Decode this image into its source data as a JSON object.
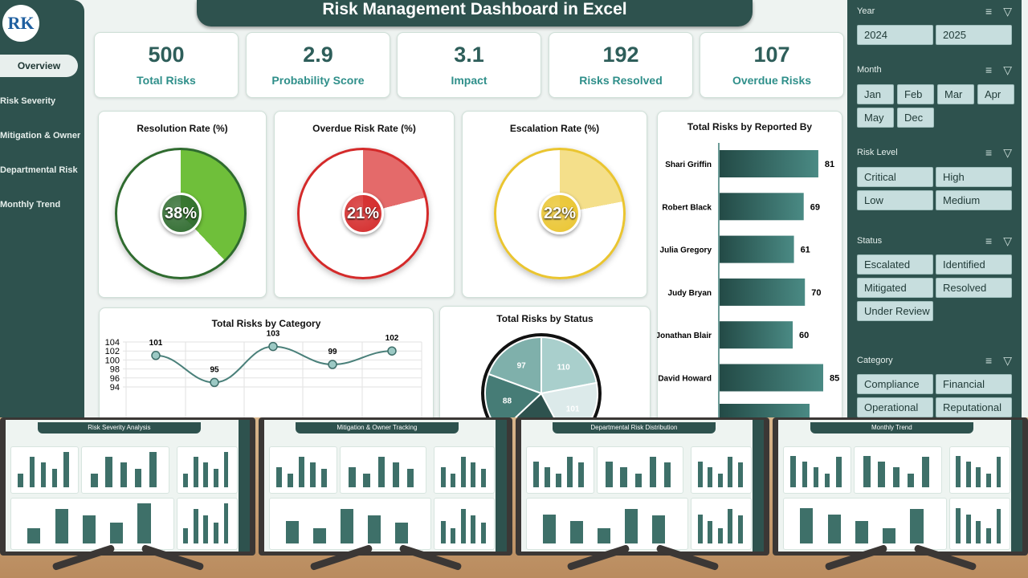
{
  "app": {
    "title": "Risk Management Dashboard in Excel",
    "logo_text": "RK"
  },
  "sidebar": {
    "items": [
      {
        "label": "Overview",
        "active": true
      },
      {
        "label": "Risk Severity"
      },
      {
        "label": "Mitigation & Owner"
      },
      {
        "label": "Departmental Risk"
      },
      {
        "label": "Monthly Trend"
      }
    ]
  },
  "kpis": [
    {
      "value": "500",
      "label": "Total Risks"
    },
    {
      "value": "2.9",
      "label": "Probability Score"
    },
    {
      "value": "3.1",
      "label": "Impact"
    },
    {
      "value": "192",
      "label": "Risks Resolved"
    },
    {
      "value": "107",
      "label": "Overdue Risks"
    }
  ],
  "colors": {
    "primary": "#2e524e",
    "accent": "#2f8f8a",
    "green": "#6fbf3a",
    "red": "#d42a2a",
    "yellow": "#f0c419"
  },
  "gauges": [
    {
      "title": "Resolution Rate (%)",
      "value": 38,
      "label": "38%",
      "color": "#6fbf3a",
      "ring": "#2f6b2f"
    },
    {
      "title": "Overdue Risk Rate (%)",
      "value": 21,
      "label": "21%",
      "color": "#e46a6a",
      "ring": "#d42a2a"
    },
    {
      "title": "Escalation Rate (%)",
      "value": 22,
      "label": "22%",
      "color": "#f4df8a",
      "ring": "#eac530"
    }
  ],
  "chart_data": [
    {
      "type": "bar",
      "orientation": "horizontal",
      "title": "Total Risks by Reported By",
      "categories": [
        "Shari Griffin",
        "Robert Black",
        "Julia Gregory",
        "Judy Bryan",
        "Jonathan Blair",
        "David Howard"
      ],
      "values": [
        81,
        69,
        61,
        70,
        60,
        85
      ]
    },
    {
      "type": "line",
      "title": "Total Risks by Category",
      "values": [
        101,
        95,
        103,
        99,
        102
      ],
      "y_ticks": [
        94,
        96,
        98,
        100,
        102,
        104
      ],
      "ylim": [
        94,
        104
      ],
      "grid": true
    },
    {
      "type": "pie",
      "title": "Total Risks by Status",
      "values": [
        110,
        101,
        null,
        88,
        97
      ]
    }
  ],
  "filters": [
    {
      "title": "Year",
      "options": [
        "2024",
        "2025"
      ]
    },
    {
      "title": "Month",
      "options": [
        "Jan",
        "Feb",
        "Mar",
        "Apr",
        "May",
        "Dec"
      ]
    },
    {
      "title": "Risk Level",
      "options": [
        "Critical",
        "High",
        "Low",
        "Medium"
      ]
    },
    {
      "title": "Status",
      "options": [
        "Escalated",
        "Identified",
        "Mitigated",
        "Resolved",
        "Under Review"
      ]
    },
    {
      "title": "Category",
      "options": [
        "Compliance",
        "Financial",
        "Operational",
        "Reputational"
      ]
    }
  ],
  "previews": [
    {
      "title": "Risk Severity Analysis"
    },
    {
      "title": "Mitigation & Owner Tracking"
    },
    {
      "title": "Departmental Risk Distribution"
    },
    {
      "title": "Monthly Trend"
    }
  ]
}
